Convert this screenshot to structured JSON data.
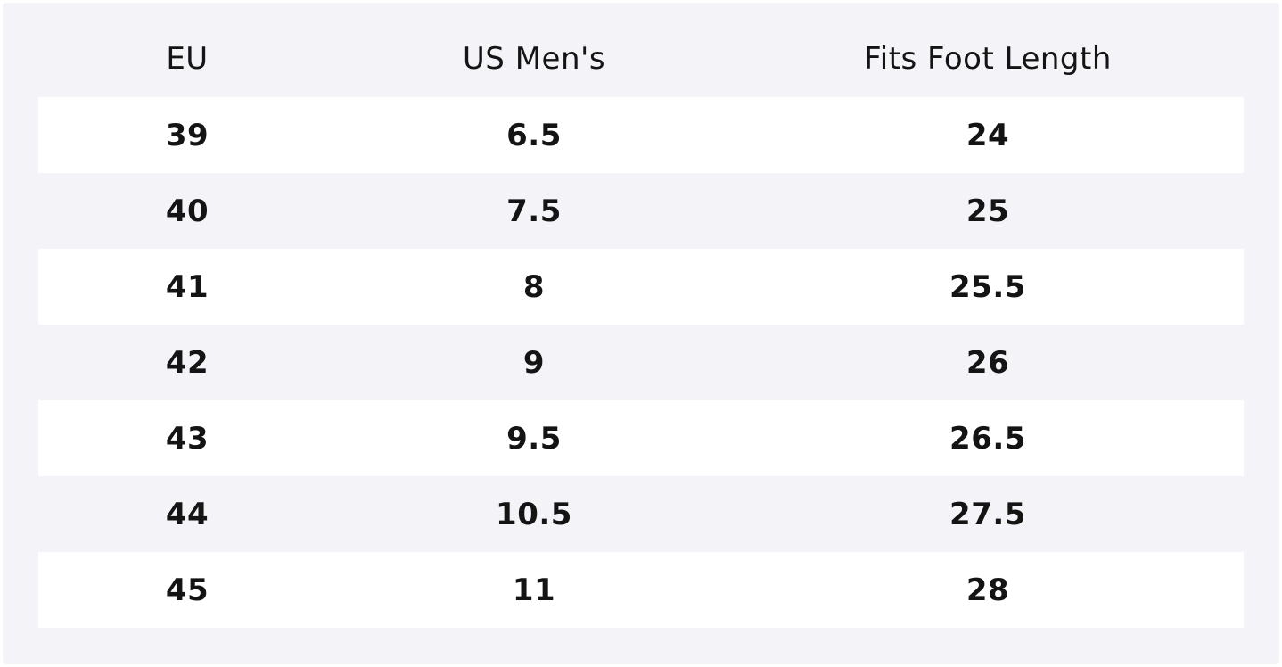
{
  "table": {
    "headers": [
      "EU",
      "US Men's",
      "Fits Foot Length"
    ],
    "rows": [
      [
        "39",
        "6.5",
        "24"
      ],
      [
        "40",
        "7.5",
        "25"
      ],
      [
        "41",
        "8",
        "25.5"
      ],
      [
        "42",
        "9",
        "26"
      ],
      [
        "43",
        "9.5",
        "26.5"
      ],
      [
        "44",
        "10.5",
        "27.5"
      ],
      [
        "45",
        "11",
        "28"
      ]
    ]
  },
  "colors": {
    "background": "#f4f4f8",
    "row_alt": "#ffffff",
    "text": "#141414"
  }
}
